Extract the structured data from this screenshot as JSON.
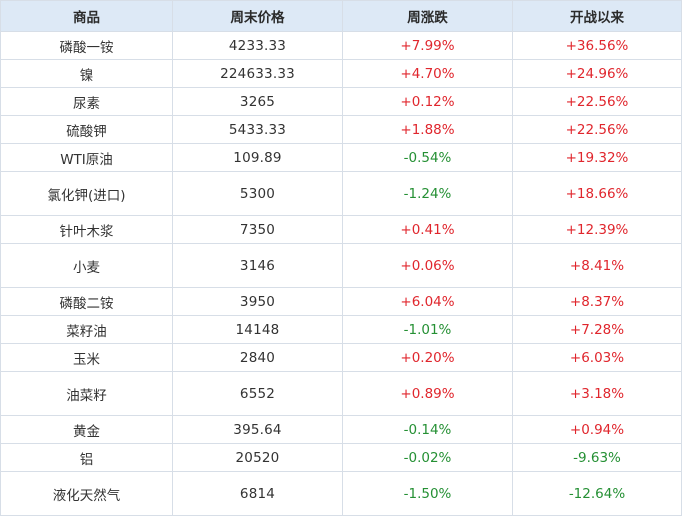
{
  "table": {
    "headers": [
      "商品",
      "周末价格",
      "周涨跌",
      "开战以来"
    ],
    "rows": [
      {
        "name": "磷酸一铵",
        "price": "4233.33",
        "week": "+7.99%",
        "since": "+36.56%"
      },
      {
        "name": "镍",
        "price": "224633.33",
        "week": "+4.70%",
        "since": "+24.96%"
      },
      {
        "name": "尿素",
        "price": "3265",
        "week": "+0.12%",
        "since": "+22.56%"
      },
      {
        "name": "硫酸钾",
        "price": "5433.33",
        "week": "+1.88%",
        "since": "+22.56%"
      },
      {
        "name": "WTI原油",
        "price": "109.89",
        "week": "-0.54%",
        "since": "+19.32%"
      },
      {
        "name": "氯化钾(进口)",
        "price": "5300",
        "week": "-1.24%",
        "since": "+18.66%"
      },
      {
        "name": "针叶木浆",
        "price": "7350",
        "week": "+0.41%",
        "since": "+12.39%"
      },
      {
        "name": "小麦",
        "price": "3146",
        "week": "+0.06%",
        "since": "+8.41%"
      },
      {
        "name": "磷酸二铵",
        "price": "3950",
        "week": "+6.04%",
        "since": "+8.37%"
      },
      {
        "name": "菜籽油",
        "price": "14148",
        "week": "-1.01%",
        "since": "+7.28%"
      },
      {
        "name": "玉米",
        "price": "2840",
        "week": "+0.20%",
        "since": "+6.03%"
      },
      {
        "name": "油菜籽",
        "price": "6552",
        "week": "+0.89%",
        "since": "+3.18%"
      },
      {
        "name": "黄金",
        "price": "395.64",
        "week": "-0.14%",
        "since": "+0.94%"
      },
      {
        "name": "铝",
        "price": "20520",
        "week": "-0.02%",
        "since": "-9.63%"
      },
      {
        "name": "液化天然气",
        "price": "6814",
        "week": "-1.50%",
        "since": "-12.64%"
      }
    ]
  },
  "colors": {
    "header_bg": "#dde9f6",
    "positive": "#e0262d",
    "negative": "#259034",
    "border": "#d7dee7"
  }
}
